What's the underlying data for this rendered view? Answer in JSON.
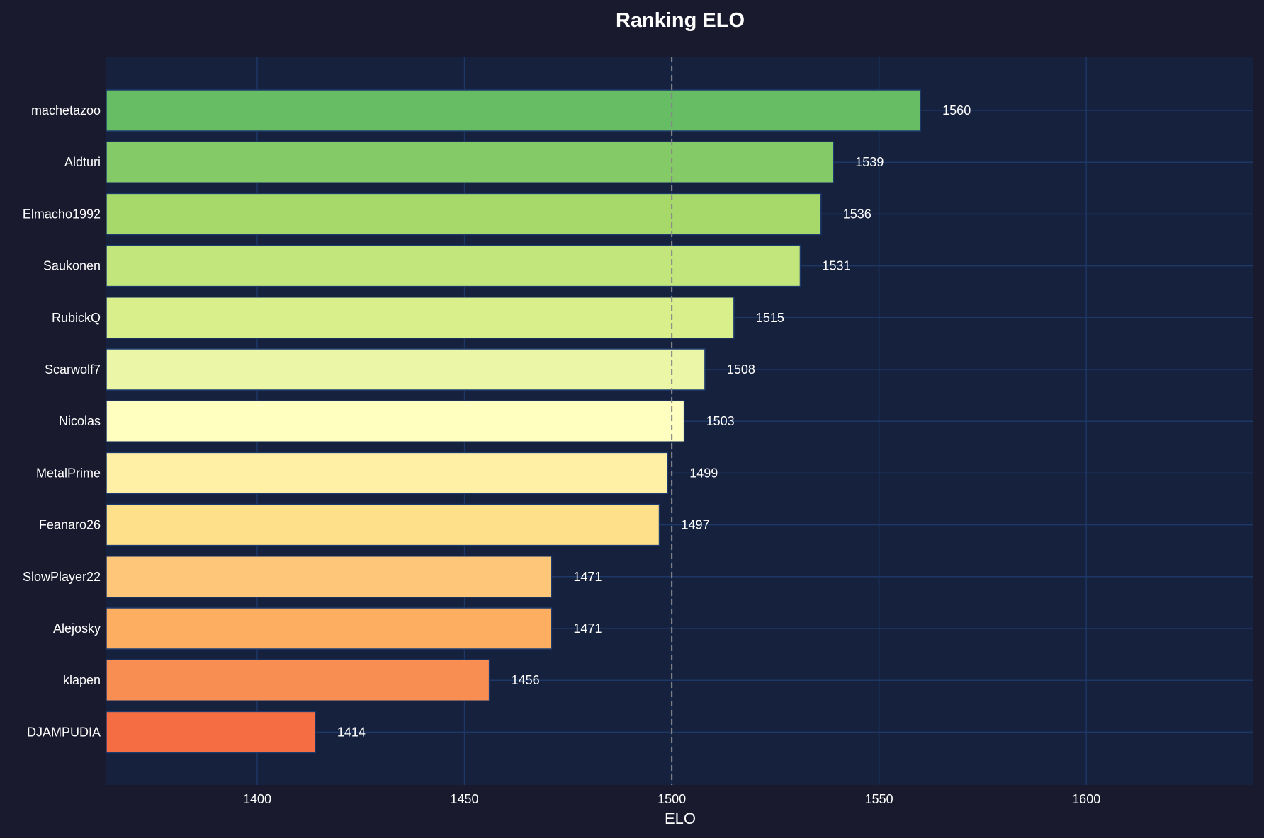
{
  "chart_data": {
    "type": "bar",
    "orientation": "horizontal",
    "title": "Ranking ELO",
    "xlabel": "ELO",
    "ylabel": "",
    "xlim": [
      1363.6,
      1640.3
    ],
    "xticks": [
      1400,
      1450,
      1500,
      1550,
      1600
    ],
    "grid": true,
    "reference_line": {
      "value": 1500,
      "style": "dashed",
      "color": "#888888"
    },
    "categories": [
      "machetazoo",
      "Aldturi",
      "Elmacho1992",
      "Saukonen",
      "RubickQ",
      "Scarwolf7",
      "Nicolas",
      "MetalPrime",
      "Feanaro26",
      "SlowPlayer22",
      "Alejosky",
      "klapen",
      "DJAMPUDIA"
    ],
    "values": [
      1560,
      1539,
      1536,
      1531,
      1515,
      1508,
      1503,
      1499,
      1497,
      1471,
      1471,
      1456,
      1414
    ],
    "data_labels": [
      "1560",
      "1539",
      "1536",
      "1531",
      "1515",
      "1508",
      "1503",
      "1499",
      "1497",
      "1471",
      "1471",
      "1456",
      "1414"
    ],
    "colors": [
      "#66bd63",
      "#84ca66",
      "#a6d96a",
      "#c2e67b",
      "#d9ef8b",
      "#ebf7a6",
      "#ffffbf",
      "#fff0a6",
      "#fee08b",
      "#fdc678",
      "#fdae61",
      "#f98e52",
      "#f46d43"
    ],
    "background": "#1a1a2e",
    "plot_background": "#16213e",
    "grid_color": "#1d3766",
    "text_color": "#ffffff"
  }
}
